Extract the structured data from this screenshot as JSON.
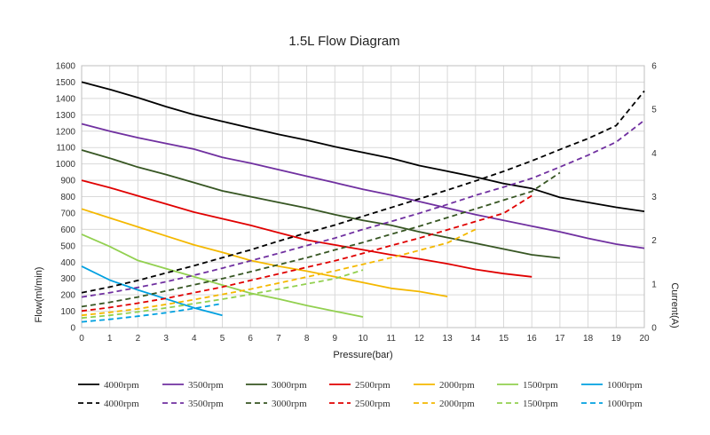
{
  "chart_data": {
    "type": "line",
    "title": "1.5L Flow Diagram",
    "xlabel": "Pressure(bar)",
    "ylabel": "Flow(ml/min)",
    "y2label": "Current(A)",
    "xlim": [
      0,
      20
    ],
    "ylim": [
      0,
      1600
    ],
    "y2lim": [
      0,
      6
    ],
    "x_ticks": [
      "0",
      "1",
      "2",
      "3",
      "4",
      "5",
      "6",
      "7",
      "8",
      "9",
      "10",
      "11",
      "12",
      "13",
      "14",
      "15",
      "16",
      "17",
      "18",
      "19",
      "20"
    ],
    "y_ticks": [
      "0",
      "100",
      "200",
      "300",
      "400",
      "500",
      "600",
      "700",
      "800",
      "900",
      "1000",
      "1100",
      "1200",
      "1300",
      "1400",
      "1500",
      "1600"
    ],
    "y2_ticks": [
      "0",
      "1",
      "2",
      "3",
      "4",
      "5",
      "6"
    ],
    "grid": true,
    "legend_position": "bottom",
    "flow_series": [
      {
        "name": "4000rpm",
        "color": "#000000",
        "x": [
          0,
          1,
          2,
          3,
          4,
          5,
          6,
          7,
          8,
          9,
          10,
          11,
          12,
          13,
          14,
          15,
          16,
          17,
          18,
          19,
          20
        ],
        "y": [
          1500,
          1455,
          1405,
          1350,
          1300,
          1260,
          1220,
          1180,
          1145,
          1105,
          1070,
          1035,
          990,
          955,
          920,
          880,
          850,
          795,
          765,
          735,
          710
        ]
      },
      {
        "name": "3500rpm",
        "color": "#7030A0",
        "x": [
          0,
          1,
          2,
          3,
          4,
          5,
          6,
          7,
          8,
          9,
          10,
          11,
          12,
          13,
          14,
          15,
          16,
          17,
          18,
          19,
          20
        ],
        "y": [
          1245,
          1200,
          1160,
          1125,
          1090,
          1040,
          1005,
          965,
          925,
          885,
          845,
          810,
          770,
          730,
          690,
          655,
          620,
          585,
          545,
          510,
          485
        ]
      },
      {
        "name": "3000rpm",
        "color": "#375623",
        "x": [
          0,
          1,
          2,
          3,
          4,
          5,
          6,
          7,
          8,
          9,
          10,
          11,
          12,
          13,
          14,
          15,
          16,
          17
        ],
        "y": [
          1085,
          1035,
          980,
          935,
          885,
          835,
          800,
          765,
          730,
          690,
          655,
          625,
          585,
          550,
          515,
          480,
          445,
          425
        ]
      },
      {
        "name": "2500rpm",
        "color": "#E00000",
        "x": [
          0,
          1,
          2,
          3,
          4,
          5,
          6,
          7,
          8,
          9,
          10,
          11,
          12,
          13,
          14,
          15,
          16
        ],
        "y": [
          900,
          855,
          805,
          755,
          705,
          665,
          625,
          580,
          535,
          505,
          475,
          445,
          420,
          390,
          355,
          330,
          310
        ]
      },
      {
        "name": "2000rpm",
        "color": "#F4B800",
        "x": [
          0,
          1,
          2,
          3,
          4,
          5,
          6,
          7,
          8,
          9,
          10,
          11,
          12,
          13
        ],
        "y": [
          725,
          670,
          615,
          560,
          505,
          460,
          410,
          375,
          345,
          310,
          275,
          240,
          220,
          190
        ]
      },
      {
        "name": "1500rpm",
        "color": "#92D050",
        "x": [
          0,
          1,
          2,
          3,
          4,
          5,
          6,
          7,
          8,
          9,
          10
        ],
        "y": [
          570,
          495,
          410,
          360,
          310,
          260,
          210,
          175,
          135,
          100,
          65
        ]
      },
      {
        "name": "1000rpm",
        "color": "#00A0E0",
        "x": [
          0,
          1,
          2,
          3,
          4,
          5
        ],
        "y": [
          375,
          290,
          230,
          175,
          120,
          75
        ]
      }
    ],
    "current_series": [
      {
        "name": "4000rpm",
        "color": "#000000",
        "x": [
          0,
          1,
          2,
          3,
          4,
          5,
          6,
          7,
          8,
          9,
          10,
          11,
          12,
          13,
          14,
          15,
          16,
          17,
          18,
          19,
          20
        ],
        "y": [
          0.8,
          0.93,
          1.08,
          1.25,
          1.42,
          1.6,
          1.78,
          1.98,
          2.17,
          2.35,
          2.55,
          2.75,
          2.95,
          3.15,
          3.36,
          3.58,
          3.82,
          4.08,
          4.33,
          4.63,
          5.42
        ]
      },
      {
        "name": "3500rpm",
        "color": "#7030A0",
        "x": [
          0,
          1,
          2,
          3,
          4,
          5,
          6,
          7,
          8,
          9,
          10,
          11,
          12,
          13,
          14,
          15,
          16,
          17,
          18,
          19,
          20
        ],
        "y": [
          0.7,
          0.8,
          0.92,
          1.05,
          1.2,
          1.36,
          1.53,
          1.7,
          1.88,
          2.05,
          2.25,
          2.43,
          2.62,
          2.82,
          3.03,
          3.22,
          3.42,
          3.68,
          3.95,
          4.25,
          4.75
        ]
      },
      {
        "name": "3000rpm",
        "color": "#375623",
        "x": [
          0,
          1,
          2,
          3,
          4,
          5,
          6,
          7,
          8,
          9,
          10,
          11,
          12,
          13,
          14,
          15,
          16,
          17
        ],
        "y": [
          0.48,
          0.58,
          0.7,
          0.84,
          0.98,
          1.12,
          1.28,
          1.44,
          1.6,
          1.78,
          1.95,
          2.14,
          2.32,
          2.52,
          2.72,
          2.92,
          3.12,
          3.55
        ]
      },
      {
        "name": "2500rpm",
        "color": "#E00000",
        "x": [
          0,
          1,
          2,
          3,
          4,
          5,
          6,
          7,
          8,
          9,
          10,
          11,
          12,
          13,
          14,
          15,
          16
        ],
        "y": [
          0.38,
          0.46,
          0.56,
          0.67,
          0.8,
          0.93,
          1.08,
          1.23,
          1.38,
          1.53,
          1.7,
          1.88,
          2.05,
          2.24,
          2.43,
          2.62,
          3.02
        ]
      },
      {
        "name": "2000rpm",
        "color": "#F4B800",
        "x": [
          0,
          1,
          2,
          3,
          4,
          5,
          6,
          7,
          8,
          9,
          10,
          11,
          12,
          13,
          14
        ],
        "y": [
          0.28,
          0.35,
          0.43,
          0.53,
          0.64,
          0.76,
          0.88,
          1.02,
          1.16,
          1.3,
          1.45,
          1.6,
          1.77,
          1.94,
          2.25
        ]
      },
      {
        "name": "1500rpm",
        "color": "#92D050",
        "x": [
          0,
          1,
          2,
          3,
          4,
          5,
          6,
          7,
          8,
          9,
          10
        ],
        "y": [
          0.22,
          0.28,
          0.36,
          0.45,
          0.55,
          0.65,
          0.76,
          0.88,
          1.0,
          1.12,
          1.32
        ]
      },
      {
        "name": "1000rpm",
        "color": "#00A0E0",
        "x": [
          0,
          1,
          2,
          3,
          4,
          5
        ],
        "y": [
          0.13,
          0.19,
          0.26,
          0.34,
          0.44,
          0.55
        ]
      }
    ]
  }
}
